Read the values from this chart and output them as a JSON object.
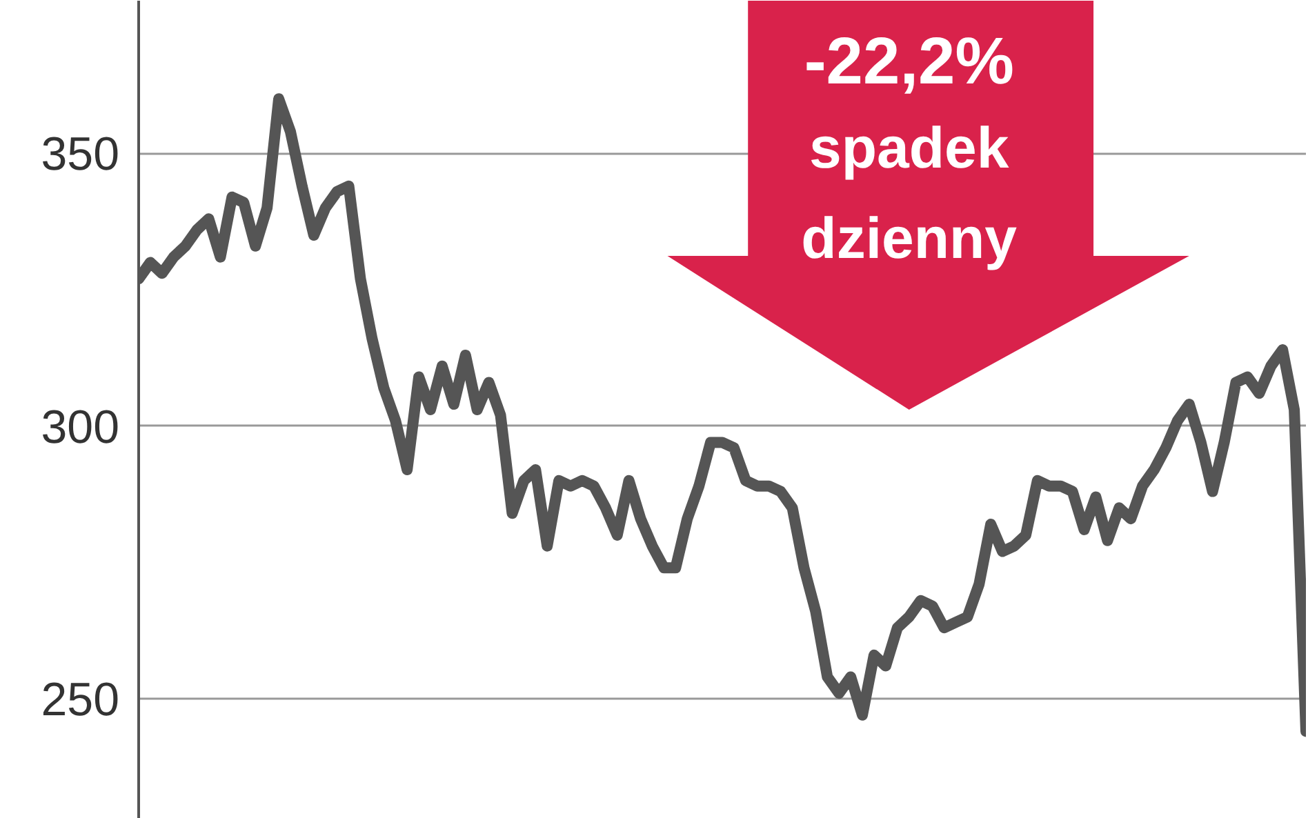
{
  "chart_data": {
    "type": "line",
    "categories": [
      null,
      null,
      null,
      null,
      null,
      null,
      null,
      null,
      null,
      null,
      null,
      null,
      null,
      null,
      null,
      null,
      null,
      null,
      null,
      null,
      null,
      null,
      null,
      null,
      null,
      null,
      null,
      null,
      null,
      null,
      null,
      null,
      null,
      null,
      null,
      null,
      null,
      null,
      null,
      null,
      null,
      null,
      null,
      null,
      null,
      null,
      null,
      null,
      null,
      null,
      null,
      null,
      null,
      null,
      null,
      null,
      null,
      null,
      null,
      null,
      null,
      null,
      null,
      null,
      null,
      null,
      null,
      null,
      null,
      null,
      null,
      null,
      null,
      null,
      null,
      null,
      null,
      null,
      null,
      null,
      null,
      null,
      null,
      null,
      null,
      null,
      null,
      null,
      null,
      null,
      null,
      null,
      null,
      null,
      null,
      null,
      null,
      null,
      null,
      null,
      null
    ],
    "series": [
      {
        "color": "#555555",
        "values": [
          327,
          330,
          328,
          331,
          333,
          336,
          338,
          331,
          342,
          341,
          333,
          340,
          360,
          354,
          344,
          335,
          340,
          343,
          344,
          327,
          316,
          307,
          301,
          292,
          309,
          303,
          311,
          304,
          313,
          303,
          308,
          302,
          284,
          290,
          292,
          278,
          290,
          289,
          290,
          289,
          285,
          280,
          290,
          283,
          278,
          274,
          274,
          283,
          289,
          297,
          297,
          296,
          290,
          289,
          289,
          288,
          285,
          274,
          266,
          254,
          251,
          254,
          247,
          258,
          256,
          263,
          265,
          268,
          267,
          263,
          264,
          265,
          271,
          282,
          277,
          278,
          280,
          290,
          289,
          289,
          288,
          281,
          287,
          279,
          285,
          283,
          289,
          292,
          296,
          301,
          304,
          297,
          288,
          297,
          308,
          309,
          306,
          311,
          314,
          303,
          244
        ]
      }
    ],
    "ylim": [
      228,
      378
    ],
    "yticks": [
      250,
      300,
      350
    ],
    "grid": "y",
    "line_style": "solid",
    "marker": "none",
    "annotations": [
      "-22,2%\nspadek\ndzienny"
    ]
  }
}
